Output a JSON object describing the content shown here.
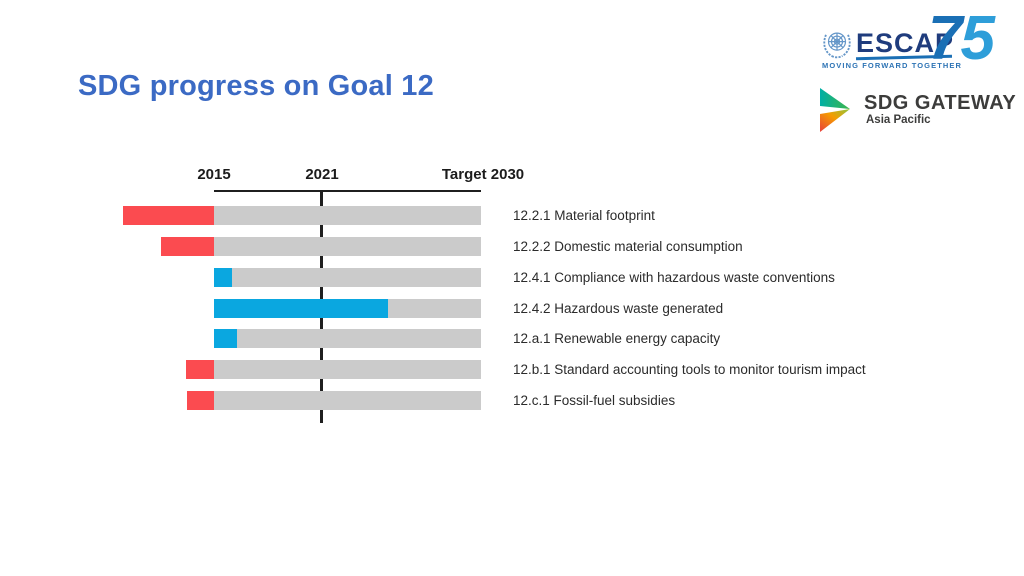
{
  "slide": {
    "title": "SDG progress on Goal 12",
    "title_color": "#3B6AC4"
  },
  "logos": {
    "escap": {
      "name": "ESCAP",
      "number_7": "7",
      "number_5": "5",
      "tagline": "MOVING FORWARD TOGETHER",
      "un_emblem_icon": "un-emblem-icon",
      "wordmark_color": "#1F3C7D",
      "accent_color": "#1A6FB5"
    },
    "sdg_gateway": {
      "title": "SDG GATEWAY",
      "subtitle": "Asia Pacific",
      "icon": "gateway-chevron-icon",
      "icon_colors": [
        "#00AFA5",
        "#3DB54A",
        "#E8403C",
        "#F59C00"
      ]
    }
  },
  "chart_data": {
    "type": "bar",
    "orientation": "horizontal",
    "title": "",
    "xlabel": "",
    "ylabel": "",
    "axis": {
      "ticks": [
        {
          "label": "2015",
          "year": 2015
        },
        {
          "label": "2021",
          "year": 2021
        },
        {
          "label": "Target 2030",
          "year": 2030
        }
      ],
      "range_years": [
        2015,
        2030
      ],
      "current_year_marker": 2021,
      "grid": false,
      "legend": "none"
    },
    "colors": {
      "track": "#CBCBCB",
      "progress": "#0AA7E0",
      "regression": "#FB4B50",
      "axis_line": "#1F1F1F"
    },
    "rows": [
      {
        "label": "12.2.1 Material footprint",
        "direction": "regression",
        "value_years": -5.1
      },
      {
        "label": "12.2.2 Domestic material consumption",
        "direction": "regression",
        "value_years": -3.0
      },
      {
        "label": "12.4.1 Compliance with hazardous waste conventions",
        "direction": "progress",
        "value_years": 1.0
      },
      {
        "label": "12.4.2 Hazardous waste generated",
        "direction": "progress",
        "value_years": 9.8
      },
      {
        "label": "12.a.1 Renewable energy capacity",
        "direction": "progress",
        "value_years": 1.3
      },
      {
        "label": "12.b.1 Standard accounting tools to monitor tourism impact",
        "direction": "regression",
        "value_years": -1.6
      },
      {
        "label": "12.c.1 Fossil-fuel subsidies",
        "direction": "regression",
        "value_years": -1.5
      }
    ]
  }
}
